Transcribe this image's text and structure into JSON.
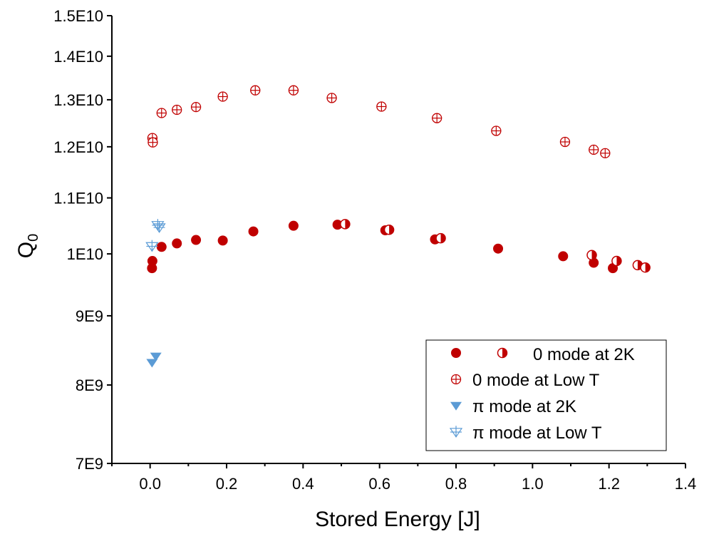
{
  "chart_data": {
    "type": "scatter",
    "title": "",
    "xlabel": "Stored Energy [J]",
    "ylabel": "Q",
    "ylabel_subscript": "0",
    "y_scale": "log",
    "xlim": [
      -0.1,
      1.4
    ],
    "ylim": [
      7000000000.0,
      15000000000.0
    ],
    "x_ticks": [
      0.0,
      0.2,
      0.4,
      0.6,
      0.8,
      1.0,
      1.2,
      1.4
    ],
    "x_tick_labels": [
      "0.0",
      "0.2",
      "0.4",
      "0.6",
      "0.8",
      "1.0",
      "1.2",
      "1.4"
    ],
    "y_ticks": [
      7000000000.0,
      8000000000.0,
      9000000000.0,
      10000000000.0,
      11000000000.0,
      12000000000.0,
      13000000000.0,
      14000000000.0,
      15000000000.0
    ],
    "y_tick_labels": [
      "7E9",
      "8E9",
      "9E9",
      "1E10",
      "1.1E10",
      "1.2E10",
      "1.3E10",
      "1.4E10",
      "1.5E10"
    ],
    "grid": false,
    "legend_position": "bottom-right",
    "colors": {
      "red": "#c00000",
      "blue": "#5b9bd5"
    },
    "series": [
      {
        "name": "0 mode at 2K",
        "marker": "filled-circle",
        "color": "#c00000",
        "points": [
          [
            0.005,
            9760000000.0
          ],
          [
            0.006,
            9880000000.0
          ],
          [
            0.03,
            10120000000.0
          ],
          [
            0.07,
            10180000000.0
          ],
          [
            0.12,
            10240000000.0
          ],
          [
            0.19,
            10230000000.0
          ],
          [
            0.27,
            10390000000.0
          ],
          [
            0.375,
            10490000000.0
          ],
          [
            0.49,
            10510000000.0
          ],
          [
            0.615,
            10410000000.0
          ],
          [
            0.745,
            10250000000.0
          ],
          [
            0.91,
            10090000000.0
          ],
          [
            1.08,
            9960000000.0
          ],
          [
            1.16,
            9850000000.0
          ],
          [
            1.21,
            9760000000.0
          ]
        ]
      },
      {
        "name": "0 mode at 2K",
        "marker": "half-filled-circle",
        "color": "#c00000",
        "points": [
          [
            0.51,
            10520000000.0
          ],
          [
            0.625,
            10420000000.0
          ],
          [
            0.76,
            10270000000.0
          ],
          [
            1.155,
            9980000000.0
          ],
          [
            1.22,
            9880000000.0
          ],
          [
            1.275,
            9810000000.0
          ],
          [
            1.295,
            9770000000.0
          ]
        ]
      },
      {
        "name": "0 mode at Low T",
        "marker": "crossed-circle",
        "color": "#c00000",
        "points": [
          [
            0.006,
            12180000000.0
          ],
          [
            0.007,
            12090000000.0
          ],
          [
            0.03,
            12710000000.0
          ],
          [
            0.07,
            12780000000.0
          ],
          [
            0.12,
            12840000000.0
          ],
          [
            0.19,
            13070000000.0
          ],
          [
            0.275,
            13210000000.0
          ],
          [
            0.375,
            13210000000.0
          ],
          [
            0.475,
            13040000000.0
          ],
          [
            0.605,
            12850000000.0
          ],
          [
            0.75,
            12600000000.0
          ],
          [
            0.905,
            12330000000.0
          ],
          [
            1.085,
            12100000000.0
          ],
          [
            1.16,
            11940000000.0
          ],
          [
            1.19,
            11870000000.0
          ]
        ]
      },
      {
        "name": "π mode at 2K",
        "marker": "filled-triangle-down",
        "color": "#5b9bd5",
        "points": [
          [
            0.005,
            8310000000.0
          ],
          [
            0.015,
            8400000000.0
          ]
        ]
      },
      {
        "name": "π mode at Low T",
        "marker": "crossed-triangle-down",
        "color": "#5b9bd5",
        "points": [
          [
            0.005,
            10130000000.0
          ],
          [
            0.02,
            10500000000.0
          ],
          [
            0.024,
            10460000000.0
          ]
        ]
      }
    ],
    "legend": [
      {
        "label": "0 mode at 2K",
        "markers": [
          "filled-circle",
          "half-filled-circle"
        ],
        "color": "#c00000"
      },
      {
        "label": "0 mode at Low T",
        "markers": [
          "crossed-circle"
        ],
        "color": "#c00000"
      },
      {
        "label": "π mode at 2K",
        "markers": [
          "filled-triangle-down"
        ],
        "color": "#5b9bd5"
      },
      {
        "label": "π mode at Low T",
        "markers": [
          "crossed-triangle-down"
        ],
        "color": "#5b9bd5"
      }
    ]
  }
}
